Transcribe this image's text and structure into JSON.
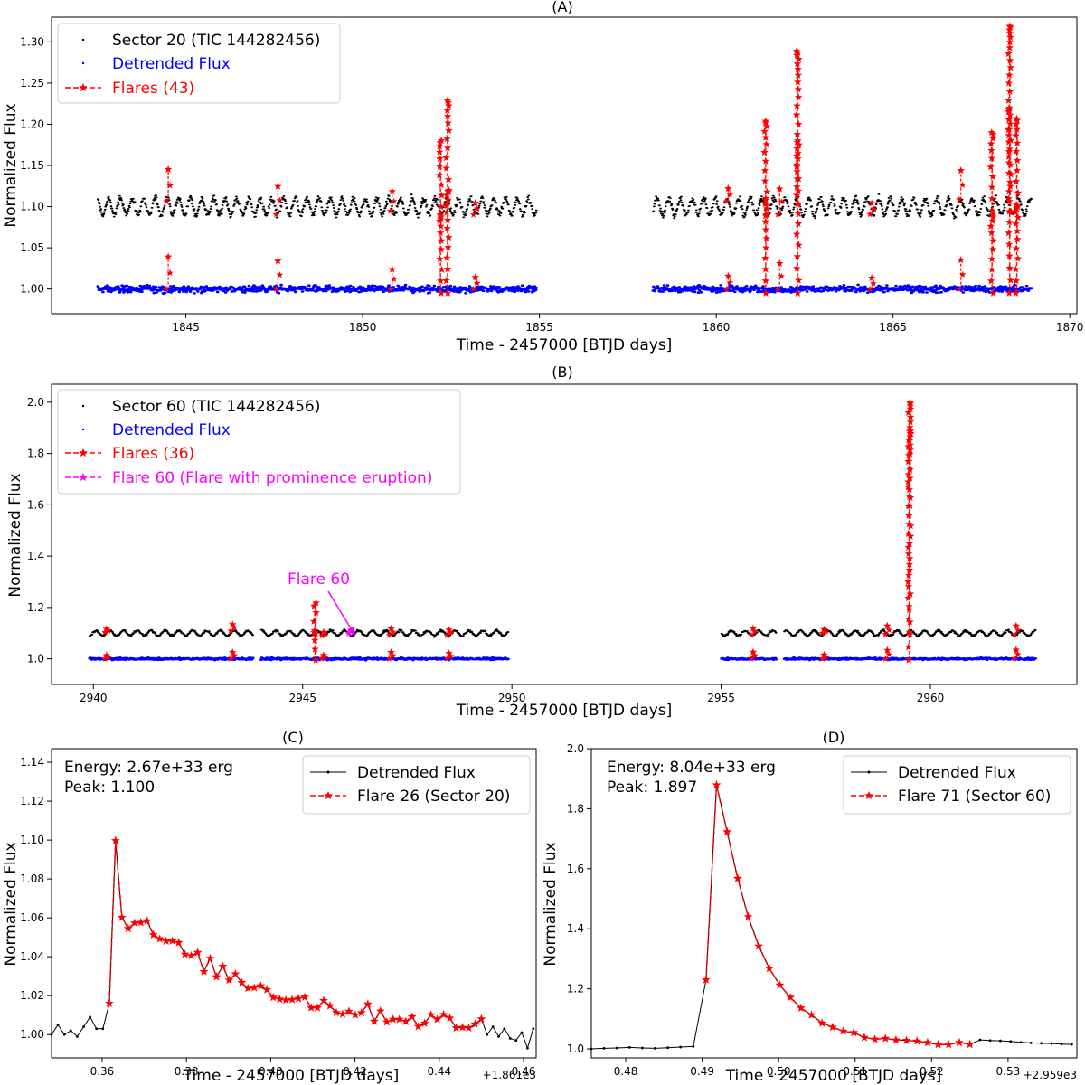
{
  "chart_data": [
    {
      "panel": "A",
      "type": "scatter",
      "title": "(A)",
      "xlabel": "Time - 2457000 [BTJD days]",
      "ylabel": "Normalized Flux",
      "xlim": [
        1841.2,
        1870.2
      ],
      "ylim": [
        0.97,
        1.33
      ],
      "xticks": [
        1845,
        1850,
        1855,
        1860,
        1865,
        1870
      ],
      "yticks": [
        1.0,
        1.05,
        1.1,
        1.15,
        1.2,
        1.25,
        1.3
      ],
      "ytick_format": 2,
      "legend": [
        "Sector 20 (TIC 144282456)",
        "Detrended Flux",
        "Flares (43)"
      ],
      "legend_position": "top-left",
      "segments": [
        [
          1842.5,
          1854.9
        ],
        [
          1858.2,
          1868.9
        ]
      ],
      "raw_level": 1.1,
      "modulation_amplitude": 0.01,
      "modulation_period_days": 0.33,
      "detrended_level": 1.0,
      "flare_count": 43,
      "notable_flares": [
        {
          "t": 1852.2,
          "peak": 1.19
        },
        {
          "t": 1852.4,
          "peak": 1.22
        },
        {
          "t": 1861.4,
          "peak": 1.21
        },
        {
          "t": 1862.3,
          "peak": 1.28
        },
        {
          "t": 1867.8,
          "peak": 1.19
        },
        {
          "t": 1868.3,
          "peak": 1.32
        },
        {
          "t": 1868.5,
          "peak": 1.2
        }
      ]
    },
    {
      "panel": "B",
      "type": "scatter",
      "title": "(B)",
      "xlabel": "Time - 2457000 [BTJD days]",
      "ylabel": "Normalized Flux",
      "xlim": [
        2939.0,
        2963.5
      ],
      "ylim": [
        0.9,
        2.07
      ],
      "xticks": [
        2940,
        2945,
        2950,
        2955,
        2960
      ],
      "yticks": [
        1.0,
        1.2,
        1.4,
        1.6,
        1.8,
        2.0
      ],
      "ytick_format": 1,
      "legend": [
        "Sector 60 (TIC 144282456)",
        "Detrended Flux",
        "Flares (36)",
        "Flare 60 (Flare with prominence eruption)"
      ],
      "legend_position": "top-left",
      "segments": [
        [
          2939.9,
          2943.8
        ],
        [
          2944.0,
          2949.9
        ],
        [
          2955.0,
          2956.3
        ],
        [
          2956.5,
          2962.5
        ]
      ],
      "raw_level": 1.1,
      "modulation_amplitude": 0.01,
      "modulation_period_days": 0.33,
      "detrended_level": 1.0,
      "flare_count": 36,
      "notable_flares": [
        {
          "t": 2945.3,
          "peak": 1.21
        },
        {
          "t": 2959.5,
          "peak": 1.99
        }
      ],
      "annotation": {
        "text": "Flare 60",
        "x": 2946.1,
        "y": 1.1
      }
    },
    {
      "panel": "C",
      "type": "line",
      "title": "(C)",
      "xlabel": "Time - 2457000 [BTJD days]",
      "ylabel": "Normalized Flux",
      "xlim": [
        0.348,
        0.463
      ],
      "ylim": [
        0.988,
        1.147
      ],
      "xticks": [
        0.36,
        0.38,
        0.4,
        0.42,
        0.44,
        0.46
      ],
      "yticks": [
        1.0,
        1.02,
        1.04,
        1.06,
        1.08,
        1.1,
        1.12,
        1.14
      ],
      "ytick_format": 2,
      "x_offset_label": "+1.861e3",
      "legend": [
        "Detrended Flux",
        "Flare 26 (Sector 20)"
      ],
      "legend_position": "top-right",
      "info": [
        "Energy: 2.67e+33 erg",
        "Peak: 1.100"
      ],
      "flare_start": 0.3617,
      "flare_end": 0.45,
      "peak_time": 0.3632,
      "peak_value": 1.1,
      "pre_points": [
        1.0,
        1.005,
        1.0,
        1.002,
        0.999,
        1.004,
        1.009,
        1.003,
        1.003
      ],
      "post_points": [
        1.0,
        1.004,
        0.999,
        1.003,
        0.998,
        0.997,
        1.001,
        0.993,
        1.003
      ],
      "decay": {
        "type": "slow",
        "level": 1.059
      }
    },
    {
      "panel": "D",
      "type": "line",
      "title": "(D)",
      "xlabel": "Time - 2457000 [BTJD days]",
      "ylabel": "Normalized Flux",
      "xlim": [
        0.4755,
        0.539
      ],
      "ylim": [
        0.97,
        2.0
      ],
      "xticks": [
        0.48,
        0.49,
        0.5,
        0.51,
        0.52,
        0.53
      ],
      "yticks": [
        1.0,
        1.2,
        1.4,
        1.6,
        1.8,
        2.0
      ],
      "ytick_format": 1,
      "x_offset_label": "+2.959e3",
      "legend": [
        "Detrended Flux",
        "Flare 71 (Sector 60)"
      ],
      "legend_position": "top-right",
      "info": [
        "Energy: 8.04e+33 erg",
        "Peak: 1.897"
      ],
      "flare_start": 0.4905,
      "flare_end": 0.525,
      "peak_time": 0.4919,
      "peak_value": 1.897,
      "pre_points": [
        1.0,
        1.002,
        1.003,
        1.005,
        1.003,
        1.002,
        1.004,
        1.006,
        1.008
      ],
      "post_points": [
        1.03,
        1.028,
        1.027,
        1.025,
        1.022,
        1.02,
        1.019,
        1.018,
        1.016,
        1.015
      ],
      "decay": {
        "type": "fast",
        "level": 1.61
      }
    }
  ],
  "colors": {
    "raw": "#000000",
    "detrended": "#0000ff",
    "flare": "#ff0000",
    "prominence": "#ff00ff"
  }
}
